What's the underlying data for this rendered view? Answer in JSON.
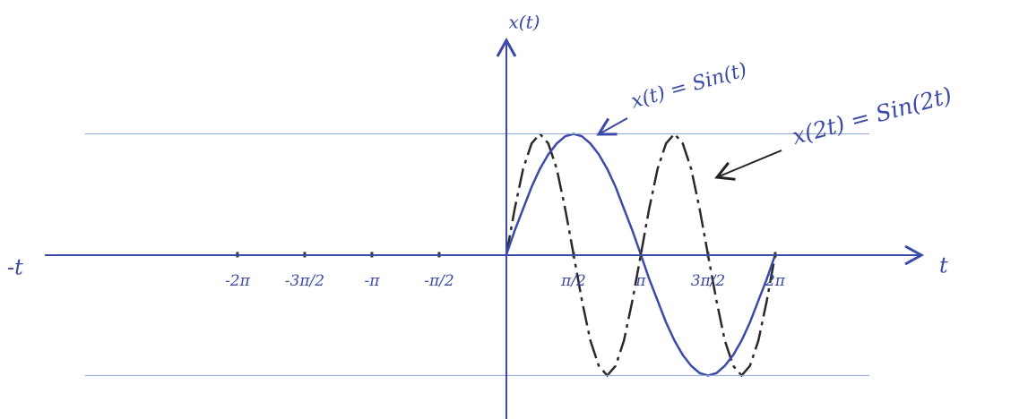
{
  "chart_data": {
    "type": "line",
    "x_label": "x(t)",
    "t_label": "t",
    "t_label_negative": "-t",
    "x": [
      0,
      0.196,
      0.393,
      0.589,
      0.785,
      0.982,
      1.178,
      1.374,
      1.571,
      1.767,
      1.963,
      2.16,
      2.356,
      2.553,
      2.749,
      2.945,
      3.142,
      3.338,
      3.534,
      3.731,
      3.927,
      4.123,
      4.32,
      4.516,
      4.712,
      4.909,
      5.105,
      5.301,
      5.498,
      5.694,
      5.89,
      6.087,
      6.283
    ],
    "series": [
      {
        "name": "x(t) = Sin(t)",
        "color": "#3b4aa6",
        "dashed": false,
        "values": [
          0,
          0.2,
          0.38,
          0.56,
          0.71,
          0.83,
          0.92,
          0.98,
          1,
          0.98,
          0.92,
          0.83,
          0.71,
          0.56,
          0.38,
          0.2,
          0,
          -0.2,
          -0.38,
          -0.56,
          -0.71,
          -0.83,
          -0.92,
          -0.98,
          -1,
          -0.98,
          -0.92,
          -0.83,
          -0.71,
          -0.56,
          -0.38,
          -0.2,
          0
        ]
      },
      {
        "name": "x(2t) = Sin(2t)",
        "color": "#2a2a2a",
        "dashed": true,
        "values": [
          0,
          0.38,
          0.71,
          0.92,
          1,
          0.92,
          0.71,
          0.38,
          0,
          -0.38,
          -0.71,
          -0.92,
          -1,
          -0.92,
          -0.71,
          -0.38,
          0,
          0.38,
          0.71,
          0.92,
          1,
          0.92,
          0.71,
          0.38,
          0,
          -0.38,
          -0.71,
          -0.92,
          -1,
          -0.92,
          -0.71,
          -0.38,
          0
        ]
      }
    ],
    "xlim": [
      -10.68,
      9.53
    ],
    "ylim": [
      -1.36,
      1.7
    ],
    "xticks": [
      {
        "value": -6.2832,
        "label": "-2π"
      },
      {
        "value": -4.7124,
        "label": "-3π/2"
      },
      {
        "value": -3.1416,
        "label": "-π"
      },
      {
        "value": -1.5708,
        "label": "-π/2"
      },
      {
        "value": 1.5708,
        "label": "π/2"
      },
      {
        "value": 3.1416,
        "label": "π"
      },
      {
        "value": 4.7124,
        "label": "3π/2"
      },
      {
        "value": 6.2832,
        "label": "2π"
      }
    ],
    "reference_lines": [
      1,
      -1
    ]
  }
}
